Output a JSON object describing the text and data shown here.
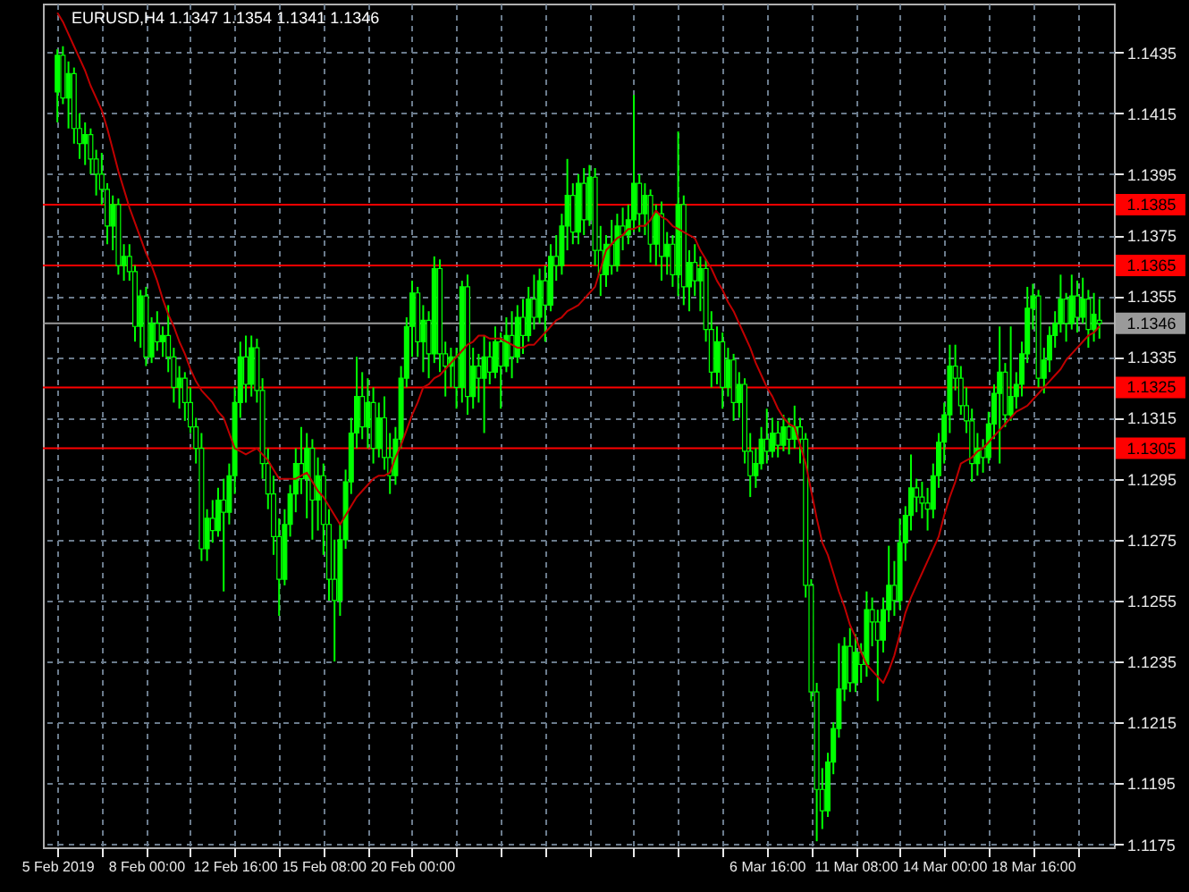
{
  "chart_data": {
    "type": "candlestick",
    "title": "EURUSD,H4  1.1347 1.1354 1.1341 1.1346",
    "categories": [
      "5 Feb 2019",
      null,
      null,
      null,
      null,
      null,
      null,
      null,
      null,
      null,
      null,
      null,
      null,
      null,
      null,
      null,
      "8 Feb 00:00",
      null,
      null,
      null,
      null,
      null,
      null,
      null,
      null,
      null,
      null,
      null,
      null,
      null,
      null,
      null,
      "12 Feb 16:00",
      null,
      null,
      null,
      null,
      null,
      null,
      null,
      null,
      null,
      null,
      null,
      null,
      null,
      null,
      null,
      "15 Feb 08:00",
      null,
      null,
      null,
      null,
      null,
      null,
      null,
      null,
      null,
      null,
      null,
      null,
      null,
      null,
      null,
      "20 Feb 00:00",
      null,
      null,
      null,
      null,
      null,
      null,
      null,
      null,
      null,
      null,
      null,
      null,
      null,
      null,
      null,
      null,
      null,
      null,
      null,
      null,
      null,
      null,
      null,
      null,
      null,
      null,
      null,
      null,
      null,
      null,
      null,
      null,
      null,
      null,
      null,
      null,
      null,
      null,
      null,
      null,
      null,
      null,
      null,
      null,
      null,
      null,
      null,
      null,
      null,
      null,
      null,
      null,
      null,
      null,
      null,
      null,
      null,
      null,
      null,
      null,
      null,
      null,
      null,
      "6 Mar 16:00",
      null,
      null,
      null,
      null,
      null,
      null,
      null,
      null,
      null,
      null,
      null,
      null,
      null,
      null,
      null,
      "11 Mar 08:00",
      null,
      null,
      null,
      null,
      null,
      null,
      null,
      null,
      null,
      null,
      null,
      null,
      null,
      null,
      null,
      "14 Mar 00:00",
      null,
      null,
      null,
      null,
      null,
      null,
      null,
      null,
      null,
      null,
      null,
      null,
      null,
      null,
      null,
      "18 Mar 16:00",
      null,
      null,
      null,
      null,
      null,
      null,
      null,
      null,
      null,
      null,
      null,
      null
    ],
    "ohlc": [
      [
        1.1422,
        1.1436,
        1.1412,
        1.1434
      ],
      [
        1.1434,
        1.1437,
        1.1418,
        1.142
      ],
      [
        1.142,
        1.1432,
        1.141,
        1.1428
      ],
      [
        1.1428,
        1.143,
        1.1405,
        1.141
      ],
      [
        1.141,
        1.1415,
        1.14,
        1.1405
      ],
      [
        1.1405,
        1.1412,
        1.1398,
        1.1408
      ],
      [
        1.1408,
        1.141,
        1.1395,
        1.14
      ],
      [
        1.14,
        1.1403,
        1.1388,
        1.1395
      ],
      [
        1.1395,
        1.1402,
        1.1385,
        1.139
      ],
      [
        1.139,
        1.1392,
        1.1372,
        1.1378
      ],
      [
        1.1378,
        1.1388,
        1.137,
        1.1385
      ],
      [
        1.1385,
        1.1387,
        1.1362,
        1.1365
      ],
      [
        1.1365,
        1.1372,
        1.136,
        1.1368
      ],
      [
        1.1368,
        1.1372,
        1.136,
        1.1363
      ],
      [
        1.1363,
        1.1365,
        1.134,
        1.1345
      ],
      [
        1.1345,
        1.1357,
        1.1338,
        1.1355
      ],
      [
        1.1355,
        1.1358,
        1.1332,
        1.1335
      ],
      [
        1.1335,
        1.1348,
        1.1333,
        1.1346
      ],
      [
        1.1346,
        1.135,
        1.1337,
        1.134
      ],
      [
        1.134,
        1.1345,
        1.1335,
        1.1342
      ],
      [
        1.1342,
        1.1352,
        1.133,
        1.1335
      ],
      [
        1.1335,
        1.1338,
        1.132,
        1.1325
      ],
      [
        1.1325,
        1.1332,
        1.1318,
        1.1328
      ],
      [
        1.1328,
        1.133,
        1.1314,
        1.132
      ],
      [
        1.132,
        1.1325,
        1.131,
        1.1312
      ],
      [
        1.1312,
        1.1315,
        1.13,
        1.1305
      ],
      [
        1.1305,
        1.131,
        1.1268,
        1.1272
      ],
      [
        1.1272,
        1.1285,
        1.1268,
        1.1282
      ],
      [
        1.1282,
        1.1288,
        1.1274,
        1.1278
      ],
      [
        1.1278,
        1.1292,
        1.1276,
        1.1288
      ],
      [
        1.1288,
        1.1295,
        1.1258,
        1.1284
      ],
      [
        1.1284,
        1.13,
        1.128,
        1.1296
      ],
      [
        1.1296,
        1.1325,
        1.129,
        1.132
      ],
      [
        1.132,
        1.134,
        1.1315,
        1.1335
      ],
      [
        1.1335,
        1.1342,
        1.132,
        1.1326
      ],
      [
        1.1326,
        1.1342,
        1.1322,
        1.1338
      ],
      [
        1.1338,
        1.1341,
        1.132,
        1.1324
      ],
      [
        1.1324,
        1.1328,
        1.1295,
        1.13
      ],
      [
        1.13,
        1.1305,
        1.1285,
        1.129
      ],
      [
        1.129,
        1.1296,
        1.127,
        1.1276
      ],
      [
        1.1276,
        1.1282,
        1.125,
        1.1262
      ],
      [
        1.1262,
        1.1285,
        1.126,
        1.128
      ],
      [
        1.128,
        1.1293,
        1.1276,
        1.129
      ],
      [
        1.129,
        1.1305,
        1.1284,
        1.13
      ],
      [
        1.13,
        1.1312,
        1.129,
        1.1295
      ],
      [
        1.1295,
        1.131,
        1.1282,
        1.1305
      ],
      [
        1.1305,
        1.1308,
        1.1275,
        1.1288
      ],
      [
        1.1288,
        1.1302,
        1.1278,
        1.1296
      ],
      [
        1.1296,
        1.13,
        1.127,
        1.128
      ],
      [
        1.128,
        1.1285,
        1.1255,
        1.1262
      ],
      [
        1.1262,
        1.1275,
        1.1235,
        1.1255
      ],
      [
        1.1255,
        1.128,
        1.125,
        1.1275
      ],
      [
        1.1275,
        1.1298,
        1.1272,
        1.1294
      ],
      [
        1.1294,
        1.1315,
        1.129,
        1.131
      ],
      [
        1.131,
        1.1335,
        1.1305,
        1.1322
      ],
      [
        1.1322,
        1.133,
        1.1308,
        1.1312
      ],
      [
        1.1312,
        1.1328,
        1.1305,
        1.132
      ],
      [
        1.132,
        1.1325,
        1.13,
        1.1305
      ],
      [
        1.1305,
        1.132,
        1.1302,
        1.1315
      ],
      [
        1.1315,
        1.1322,
        1.1298,
        1.1302
      ],
      [
        1.1302,
        1.131,
        1.129,
        1.1296
      ],
      [
        1.1296,
        1.1312,
        1.1293,
        1.1308
      ],
      [
        1.1308,
        1.1332,
        1.1305,
        1.1328
      ],
      [
        1.1328,
        1.1348,
        1.1325,
        1.1345
      ],
      [
        1.1345,
        1.136,
        1.1335,
        1.1356
      ],
      [
        1.1356,
        1.1358,
        1.1335,
        1.134
      ],
      [
        1.134,
        1.1352,
        1.133,
        1.1347
      ],
      [
        1.1347,
        1.135,
        1.1328,
        1.1336
      ],
      [
        1.1336,
        1.1368,
        1.1333,
        1.1364
      ],
      [
        1.1364,
        1.1367,
        1.133,
        1.1336
      ],
      [
        1.1336,
        1.134,
        1.1322,
        1.1332
      ],
      [
        1.1332,
        1.1338,
        1.1325,
        1.1335
      ],
      [
        1.1335,
        1.1338,
        1.1318,
        1.1325
      ],
      [
        1.1325,
        1.136,
        1.132,
        1.1358
      ],
      [
        1.1358,
        1.1362,
        1.1316,
        1.1322
      ],
      [
        1.1322,
        1.1338,
        1.1318,
        1.1332
      ],
      [
        1.1332,
        1.1336,
        1.132,
        1.1328
      ],
      [
        1.1328,
        1.1342,
        1.131,
        1.1335
      ],
      [
        1.1335,
        1.134,
        1.1326,
        1.133
      ],
      [
        1.133,
        1.1345,
        1.1328,
        1.134
      ],
      [
        1.134,
        1.1343,
        1.1318,
        1.1332
      ],
      [
        1.1332,
        1.1348,
        1.133,
        1.1342
      ],
      [
        1.1342,
        1.135,
        1.1328,
        1.1335
      ],
      [
        1.1335,
        1.1352,
        1.1333,
        1.1348
      ],
      [
        1.1348,
        1.1354,
        1.1336,
        1.1342
      ],
      [
        1.1342,
        1.1358,
        1.134,
        1.1354
      ],
      [
        1.1354,
        1.1362,
        1.1344,
        1.1348
      ],
      [
        1.1348,
        1.1364,
        1.1346,
        1.136
      ],
      [
        1.136,
        1.1365,
        1.134,
        1.1352
      ],
      [
        1.1352,
        1.1372,
        1.135,
        1.1368
      ],
      [
        1.1368,
        1.1375,
        1.136,
        1.1365
      ],
      [
        1.1365,
        1.1382,
        1.1362,
        1.1378
      ],
      [
        1.1378,
        1.14,
        1.137,
        1.1388
      ],
      [
        1.1388,
        1.1392,
        1.1372,
        1.1376
      ],
      [
        1.1376,
        1.1395,
        1.1372,
        1.1392
      ],
      [
        1.1392,
        1.1397,
        1.1375,
        1.138
      ],
      [
        1.138,
        1.1398,
        1.1378,
        1.1394
      ],
      [
        1.1394,
        1.1397,
        1.1365,
        1.137
      ],
      [
        1.137,
        1.1378,
        1.1355,
        1.1362
      ],
      [
        1.1362,
        1.1375,
        1.1358,
        1.1372
      ],
      [
        1.1372,
        1.138,
        1.1362,
        1.1365
      ],
      [
        1.1365,
        1.1382,
        1.1363,
        1.1378
      ],
      [
        1.1378,
        1.1384,
        1.137,
        1.1375
      ],
      [
        1.1375,
        1.1385,
        1.1372,
        1.138
      ],
      [
        1.138,
        1.1421,
        1.1376,
        1.1392
      ],
      [
        1.1392,
        1.1395,
        1.1376,
        1.1382
      ],
      [
        1.1382,
        1.1392,
        1.1375,
        1.1388
      ],
      [
        1.1388,
        1.139,
        1.1366,
        1.1372
      ],
      [
        1.1372,
        1.1385,
        1.1365,
        1.1382
      ],
      [
        1.1382,
        1.1386,
        1.136,
        1.1368
      ],
      [
        1.1368,
        1.1376,
        1.1362,
        1.1372
      ],
      [
        1.1372,
        1.1375,
        1.1358,
        1.1362
      ],
      [
        1.1362,
        1.1409,
        1.1355,
        1.1385
      ],
      [
        1.1385,
        1.1388,
        1.1352,
        1.1358
      ],
      [
        1.1358,
        1.137,
        1.135,
        1.1366
      ],
      [
        1.1366,
        1.1372,
        1.1355,
        1.136
      ],
      [
        1.136,
        1.1368,
        1.135,
        1.1364
      ],
      [
        1.1364,
        1.1367,
        1.134,
        1.1344
      ],
      [
        1.1344,
        1.135,
        1.1325,
        1.133
      ],
      [
        1.133,
        1.1345,
        1.1326,
        1.134
      ],
      [
        1.134,
        1.1343,
        1.1318,
        1.1325
      ],
      [
        1.1325,
        1.1338,
        1.1322,
        1.1334
      ],
      [
        1.1334,
        1.1336,
        1.1314,
        1.132
      ],
      [
        1.132,
        1.133,
        1.1315,
        1.1326
      ],
      [
        1.1326,
        1.1328,
        1.13,
        1.1304
      ],
      [
        1.1304,
        1.131,
        1.1289,
        1.1296
      ],
      [
        1.1296,
        1.1305,
        1.1292,
        1.13
      ],
      [
        1.13,
        1.1312,
        1.1298,
        1.1308
      ],
      [
        1.1308,
        1.1318,
        1.13,
        1.1304
      ],
      [
        1.1304,
        1.1315,
        1.1302,
        1.131
      ],
      [
        1.131,
        1.1314,
        1.1302,
        1.1306
      ],
      [
        1.1306,
        1.1316,
        1.1304,
        1.1312
      ],
      [
        1.1312,
        1.1315,
        1.1303,
        1.1308
      ],
      [
        1.1308,
        1.1319,
        1.1305,
        1.1312
      ],
      [
        1.1312,
        1.1315,
        1.13,
        1.1308
      ],
      [
        1.1308,
        1.131,
        1.1256,
        1.126
      ],
      [
        1.126,
        1.1262,
        1.1222,
        1.1225
      ],
      [
        1.1225,
        1.1228,
        1.1176,
        1.1193
      ],
      [
        1.1193,
        1.12,
        1.118,
        1.1186
      ],
      [
        1.1186,
        1.1205,
        1.1184,
        1.1202
      ],
      [
        1.1202,
        1.1215,
        1.1198,
        1.1213
      ],
      [
        1.1213,
        1.1241,
        1.121,
        1.1226
      ],
      [
        1.1226,
        1.1243,
        1.1222,
        1.124
      ],
      [
        1.124,
        1.1246,
        1.1225,
        1.1228
      ],
      [
        1.1228,
        1.1244,
        1.1225,
        1.1238
      ],
      [
        1.1238,
        1.1241,
        1.1228,
        1.1234
      ],
      [
        1.1234,
        1.1258,
        1.123,
        1.1252
      ],
      [
        1.1252,
        1.1256,
        1.124,
        1.1248
      ],
      [
        1.1248,
        1.1252,
        1.1222,
        1.1242
      ],
      [
        1.1242,
        1.1256,
        1.1238,
        1.1252
      ],
      [
        1.1252,
        1.1273,
        1.1248,
        1.126
      ],
      [
        1.126,
        1.1268,
        1.125,
        1.1255
      ],
      [
        1.1255,
        1.1282,
        1.1252,
        1.1274
      ],
      [
        1.1274,
        1.1286,
        1.1268,
        1.1283
      ],
      [
        1.1283,
        1.1303,
        1.1278,
        1.1292
      ],
      [
        1.1292,
        1.1295,
        1.1284,
        1.1289
      ],
      [
        1.1289,
        1.1294,
        1.1282,
        1.1287
      ],
      [
        1.1287,
        1.1292,
        1.1278,
        1.1285
      ],
      [
        1.1285,
        1.13,
        1.1282,
        1.1296
      ],
      [
        1.1296,
        1.131,
        1.1292,
        1.1307
      ],
      [
        1.1307,
        1.132,
        1.13,
        1.1316
      ],
      [
        1.1316,
        1.1339,
        1.131,
        1.1332
      ],
      [
        1.1332,
        1.1339,
        1.1324,
        1.1328
      ],
      [
        1.1328,
        1.1332,
        1.1316,
        1.1319
      ],
      [
        1.1319,
        1.1325,
        1.131,
        1.1314
      ],
      [
        1.1314,
        1.1318,
        1.1294,
        1.13
      ],
      [
        1.13,
        1.131,
        1.1296,
        1.1305
      ],
      [
        1.1305,
        1.1308,
        1.1297,
        1.1302
      ],
      [
        1.1302,
        1.1317,
        1.13,
        1.1313
      ],
      [
        1.1313,
        1.1326,
        1.1308,
        1.1323
      ],
      [
        1.1323,
        1.1345,
        1.13,
        1.133
      ],
      [
        1.133,
        1.1333,
        1.1312,
        1.1316
      ],
      [
        1.1316,
        1.1345,
        1.1314,
        1.1322
      ],
      [
        1.1322,
        1.133,
        1.1318,
        1.1326
      ],
      [
        1.1326,
        1.134,
        1.1322,
        1.1336
      ],
      [
        1.1336,
        1.1358,
        1.1333,
        1.1351
      ],
      [
        1.1351,
        1.1359,
        1.1344,
        1.1355
      ],
      [
        1.1355,
        1.1357,
        1.1325,
        1.1328
      ],
      [
        1.1328,
        1.1338,
        1.1323,
        1.1334
      ],
      [
        1.1334,
        1.1345,
        1.133,
        1.1342
      ],
      [
        1.1342,
        1.135,
        1.1338,
        1.1346
      ],
      [
        1.1346,
        1.1362,
        1.1343,
        1.1354
      ],
      [
        1.1354,
        1.1356,
        1.134,
        1.1346
      ],
      [
        1.1346,
        1.1362,
        1.1344,
        1.1355
      ],
      [
        1.1355,
        1.136,
        1.1343,
        1.1348
      ],
      [
        1.1348,
        1.1361,
        1.1346,
        1.1354
      ],
      [
        1.1354,
        1.1357,
        1.1338,
        1.1344
      ],
      [
        1.1344,
        1.1356,
        1.134,
        1.1349
      ],
      [
        1.1347,
        1.1354,
        1.1341,
        1.1346
      ]
    ],
    "color": "#00ff00",
    "series": [
      {
        "type": "line",
        "color": "#c00000",
        "values": [
          1.1448,
          1.1445,
          1.1441,
          1.1437,
          1.1433,
          1.1429,
          1.1424,
          1.142,
          1.1416,
          1.141,
          1.1403,
          1.1396,
          1.139,
          1.1384,
          1.1379,
          1.1374,
          1.1369,
          1.1365,
          1.136,
          1.1354,
          1.1349,
          1.1345,
          1.134,
          1.1336,
          1.1331,
          1.1327,
          1.1324,
          1.1322,
          1.132,
          1.1317,
          1.1315,
          1.131,
          1.1305,
          1.1304,
          1.1303,
          1.1304,
          1.1305,
          1.1303,
          1.1301,
          1.1298,
          1.1295,
          1.1295,
          1.1295,
          1.1295,
          1.1296,
          1.1297,
          1.1294,
          1.1291,
          1.1289,
          1.1286,
          1.1283,
          1.128,
          1.1283,
          1.1286,
          1.1289,
          1.1291,
          1.1293,
          1.1295,
          1.1296,
          1.1296,
          1.1297,
          1.1302,
          1.1306,
          1.1311,
          1.1316,
          1.132,
          1.1325,
          1.1326,
          1.1328,
          1.1329,
          1.1331,
          1.1333,
          1.1335,
          1.1337,
          1.1339,
          1.134,
          1.1342,
          1.1342,
          1.1341,
          1.1341,
          1.1341,
          1.134,
          1.1339,
          1.1338,
          1.1338,
          1.1339,
          1.1339,
          1.1341,
          1.1343,
          1.1345,
          1.1347,
          1.1348,
          1.135,
          1.1351,
          1.1352,
          1.1354,
          1.1356,
          1.1358,
          1.1364,
          1.137,
          1.1372,
          1.1374,
          1.1375,
          1.1377,
          1.1377,
          1.1378,
          1.1378,
          1.138,
          1.1383,
          1.1381,
          1.138,
          1.1378,
          1.1377,
          1.1376,
          1.1375,
          1.1374,
          1.137,
          1.1367,
          1.1364,
          1.136,
          1.1357,
          1.1353,
          1.135,
          1.1346,
          1.1342,
          1.1338,
          1.1333,
          1.1329,
          1.1325,
          1.1322,
          1.1318,
          1.1315,
          1.1313,
          1.1312,
          1.1306,
          1.13,
          1.1291,
          1.1282,
          1.1274,
          1.127,
          1.1264,
          1.1258,
          1.1253,
          1.1247,
          1.1243,
          1.1238,
          1.1234,
          1.1232,
          1.123,
          1.1228,
          1.1232,
          1.1237,
          1.1244,
          1.1251,
          1.1256,
          1.126,
          1.1264,
          1.1268,
          1.1272,
          1.1276,
          1.1283,
          1.1289,
          1.1294,
          1.13,
          1.1301,
          1.1302,
          1.1304,
          1.1305,
          1.1307,
          1.1309,
          1.1311,
          1.1313,
          1.1315,
          1.1317,
          1.1318,
          1.1319,
          1.1321,
          1.1323,
          1.1325,
          1.1327,
          1.1329,
          1.1331,
          1.1334,
          1.1336,
          1.1338,
          1.134,
          1.1342,
          1.1343,
          1.1345
        ]
      }
    ],
    "ylim": [
      1.1174,
      1.1451
    ],
    "yticks": [
      1.1175,
      1.1195,
      1.1215,
      1.1235,
      1.1255,
      1.1275,
      1.1295,
      1.1315,
      1.1335,
      1.1355,
      1.1375,
      1.1395,
      1.1415,
      1.1435
    ],
    "grid": true,
    "ref_lines": [
      {
        "axis": "y",
        "value": 1.1385,
        "label": "1.1385",
        "color": "#ff0000"
      },
      {
        "axis": "y",
        "value": 1.1365,
        "label": "1.1365",
        "color": "#ff0000"
      },
      {
        "axis": "y",
        "value": 1.1325,
        "label": "1.1325",
        "color": "#ff0000"
      },
      {
        "axis": "y",
        "value": 1.1305,
        "label": "1.1305",
        "color": "#ff0000"
      },
      {
        "axis": "y",
        "value": 1.1346,
        "label": "1.1346",
        "color": "#9a9a9a"
      }
    ]
  }
}
